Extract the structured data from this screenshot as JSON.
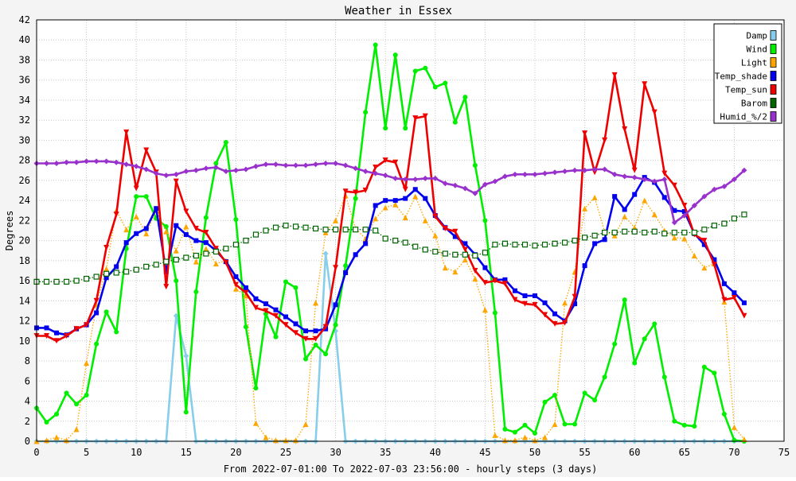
{
  "chart_data": {
    "type": "line",
    "title": "Weather in Essex",
    "xlabel": "From 2022-07-01:00 To 2022-07-03 23:56:00 - hourly steps (3 days)",
    "ylabel": "Degrees",
    "xlim": [
      0,
      75
    ],
    "ylim": [
      0,
      42
    ],
    "x_ticks": [
      0,
      5,
      10,
      15,
      20,
      25,
      30,
      35,
      40,
      45,
      50,
      55,
      60,
      65,
      70,
      75
    ],
    "y_ticks": [
      0,
      2,
      4,
      6,
      8,
      10,
      12,
      14,
      16,
      18,
      20,
      22,
      24,
      26,
      28,
      30,
      32,
      34,
      36,
      38,
      40,
      42
    ],
    "grid": true,
    "legend_position": "top-right",
    "series": [
      {
        "name": "Damp",
        "color": "#87ceeb",
        "marker": "diamond",
        "line": "solid",
        "x_start": 0,
        "values": [
          0,
          0,
          0,
          0,
          0,
          0,
          0,
          0,
          0,
          0,
          0,
          0,
          0,
          0,
          12.5,
          8.5,
          0,
          0,
          0,
          0,
          0,
          0,
          0,
          0,
          0,
          0,
          0,
          0,
          0,
          18.7,
          11,
          0,
          0,
          0,
          0,
          0,
          0,
          0,
          0,
          0,
          0,
          0,
          0,
          0,
          0,
          0,
          0,
          0,
          0,
          0,
          0,
          0,
          0,
          0,
          0,
          0,
          0,
          0,
          0,
          0,
          0,
          0,
          0,
          0,
          0,
          0,
          0,
          0,
          0,
          0,
          0,
          0
        ]
      },
      {
        "name": "Wind",
        "color": "#00ee00",
        "marker": "circle",
        "line": "solid",
        "x_start": 0,
        "values": [
          3.3,
          1.9,
          2.7,
          4.8,
          3.7,
          4.6,
          9.7,
          12.9,
          10.9,
          19.2,
          24.4,
          24.4,
          22.2,
          21.4,
          16.0,
          2.9,
          14.9,
          22.3,
          27.7,
          29.8,
          22.1,
          11.4,
          5.3,
          12.7,
          10.4,
          15.9,
          15.3,
          8.2,
          9.6,
          8.7,
          11.6,
          17.5,
          24.2,
          32.8,
          39.5,
          31.2,
          38.5,
          31.2,
          36.9,
          37.2,
          35.3,
          35.7,
          31.8,
          34.3,
          27.5,
          22.0,
          12.8,
          1.2,
          0.9,
          1.6,
          0.8,
          3.9,
          4.6,
          1.7,
          1.7,
          4.8,
          4.1,
          6.4,
          9.7,
          14.1,
          7.8,
          10.2,
          11.7,
          6.4,
          2.0,
          1.6,
          1.5,
          7.4,
          6.8,
          2.7,
          0.1,
          0
        ]
      },
      {
        "name": "Light",
        "color": "#ffa500",
        "marker": "triangle",
        "line": "dotted",
        "x_start": 0,
        "values": [
          0,
          0.1,
          0.4,
          0.1,
          1.2,
          7.8,
          13.6,
          17.2,
          23.0,
          21.1,
          22.4,
          20.7,
          23.0,
          20.9,
          19.0,
          21.4,
          17.9,
          19.2,
          17.7,
          18.0,
          15.2,
          14.5,
          1.8,
          0.4,
          0.1,
          0.1,
          0.1,
          1.7,
          13.8,
          20.8,
          22.0,
          24.5,
          21.2,
          20.2,
          22.2,
          23.3,
          23.6,
          22.3,
          24.4,
          22.0,
          20.5,
          17.3,
          16.9,
          18.1,
          16.2,
          13.1,
          0.6,
          0.1,
          0.1,
          0.4,
          0.1,
          0.4,
          1.7,
          13.8,
          16.9,
          23.2,
          24.3,
          20.9,
          20.5,
          22.4,
          21.3,
          24.0,
          22.6,
          21.0,
          20.3,
          20.2,
          18.5,
          17.3,
          17.7,
          13.9,
          1.4,
          0.2
        ]
      },
      {
        "name": "Temp_shade",
        "color": "#0000ee",
        "marker": "square",
        "line": "solid",
        "x_start": 0,
        "values": [
          11.3,
          11.3,
          10.8,
          10.6,
          11.2,
          11.6,
          12.8,
          16.3,
          17.4,
          19.8,
          20.7,
          21.2,
          23.2,
          16.9,
          21.5,
          20.6,
          20.0,
          19.8,
          19.0,
          17.9,
          16.4,
          15.3,
          14.2,
          13.7,
          13.1,
          12.4,
          11.7,
          11.0,
          11.0,
          11.2,
          13.6,
          16.8,
          18.6,
          19.7,
          23.5,
          24.0,
          24.0,
          24.2,
          25.1,
          24.2,
          22.5,
          21.3,
          20.4,
          19.7,
          18.6,
          17.3,
          16.1,
          16.1,
          15.0,
          14.5,
          14.5,
          13.8,
          12.7,
          12.0,
          13.7,
          17.5,
          19.7,
          20.1,
          24.4,
          23.1,
          24.6,
          26.3,
          25.8,
          24.3,
          23.0,
          22.9,
          20.7,
          19.6,
          18.1,
          15.7,
          14.8,
          13.8
        ]
      },
      {
        "name": "Temp_sun",
        "color": "#ee0000",
        "marker": "triangle-down",
        "line": "solid",
        "x_start": 0,
        "values": [
          10.5,
          10.5,
          10.0,
          10.5,
          11.2,
          11.6,
          14.0,
          19.3,
          22.6,
          30.8,
          25.2,
          29.0,
          26.8,
          15.4,
          25.9,
          22.9,
          21.2,
          20.8,
          19.2,
          17.8,
          15.6,
          14.8,
          13.3,
          13.0,
          12.5,
          11.6,
          10.8,
          10.2,
          10.2,
          11.4,
          17.3,
          24.9,
          24.8,
          25.0,
          27.3,
          28.0,
          27.8,
          25.1,
          32.2,
          32.4,
          22.4,
          21.2,
          20.9,
          19.1,
          17.0,
          15.8,
          16.0,
          15.7,
          14.1,
          13.7,
          13.6,
          12.6,
          11.7,
          11.8,
          14.4,
          30.7,
          26.8,
          30.0,
          36.5,
          31.1,
          27.0,
          35.6,
          32.8,
          26.7,
          25.5,
          23.5,
          20.6,
          20.0,
          17.6,
          14.1,
          14.3,
          12.5
        ]
      },
      {
        "name": "Barom",
        "color": "#006400",
        "marker": "square-open",
        "line": "dotted",
        "x_start": 0,
        "values": [
          15.9,
          15.9,
          15.9,
          15.9,
          16.0,
          16.2,
          16.4,
          16.7,
          16.8,
          16.9,
          17.1,
          17.4,
          17.6,
          17.9,
          18.1,
          18.3,
          18.5,
          18.7,
          18.9,
          19.2,
          19.6,
          20.0,
          20.6,
          21.0,
          21.3,
          21.5,
          21.4,
          21.3,
          21.2,
          21.1,
          21.1,
          21.1,
          21.1,
          21.1,
          21.0,
          20.2,
          20.0,
          19.8,
          19.4,
          19.1,
          18.9,
          18.7,
          18.6,
          18.6,
          18.5,
          18.8,
          19.6,
          19.7,
          19.6,
          19.6,
          19.5,
          19.6,
          19.7,
          19.8,
          20.0,
          20.3,
          20.5,
          20.8,
          20.8,
          20.9,
          20.9,
          20.8,
          20.9,
          20.7,
          20.8,
          20.8,
          20.8,
          21.1,
          21.5,
          21.7,
          22.2,
          22.6
        ]
      },
      {
        "name": "Humid_%/2",
        "color": "#9932cc",
        "marker": "diamond",
        "line": "solid",
        "x_start": 0,
        "values": [
          27.7,
          27.7,
          27.7,
          27.8,
          27.8,
          27.9,
          27.9,
          27.9,
          27.8,
          27.6,
          27.4,
          27.1,
          26.7,
          26.5,
          26.6,
          26.9,
          27.0,
          27.2,
          27.3,
          26.9,
          27.0,
          27.1,
          27.4,
          27.6,
          27.6,
          27.5,
          27.5,
          27.5,
          27.6,
          27.7,
          27.7,
          27.5,
          27.2,
          26.9,
          26.7,
          26.5,
          26.2,
          26.1,
          26.1,
          26.2,
          26.2,
          25.7,
          25.5,
          25.2,
          24.7,
          25.6,
          25.9,
          26.4,
          26.6,
          26.6,
          26.6,
          26.7,
          26.8,
          26.9,
          27.0,
          27.0,
          27.1,
          27.1,
          26.6,
          26.4,
          26.3,
          26.1,
          25.9,
          26.1,
          21.8,
          22.5,
          23.5,
          24.4,
          25.1,
          25.4,
          26.1,
          27.0
        ]
      }
    ]
  }
}
